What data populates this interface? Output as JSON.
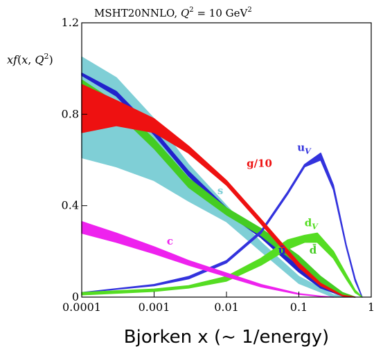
{
  "chart_data": {
    "type": "line",
    "title": "MSHT20NNLO, Q² = 10 GeV²",
    "title_parts": {
      "prefix": "MSHT20NNLO, ",
      "q": "Q",
      "q_exp": "2",
      "equals": " = 10 GeV",
      "gev_exp": "2"
    },
    "ylabel": "xf(x, Q²)",
    "ylabel_parts": {
      "x": "x",
      "f": "f",
      "open": "(",
      "x2": "x",
      "comma": ", ",
      "q": "Q",
      "q_exp": "2",
      "close": ")"
    },
    "xlabel": "Bjorken x (~ 1/energy)",
    "xscale": "log",
    "xlim": [
      0.0001,
      1
    ],
    "ylim": [
      0,
      1.2
    ],
    "x_ticks": [
      {
        "value": 0.0001,
        "label": "0.0001"
      },
      {
        "value": 0.001,
        "label": "0.001"
      },
      {
        "value": 0.01,
        "label": "0.01"
      },
      {
        "value": 0.1,
        "label": "0.1"
      },
      {
        "value": 1,
        "label": "1"
      }
    ],
    "y_ticks": [
      {
        "value": 0,
        "label": "0"
      },
      {
        "value": 0.4,
        "label": "0.4"
      },
      {
        "value": 0.8,
        "label": "0.8"
      },
      {
        "value": 1.2,
        "label": "1.2"
      }
    ],
    "grid": false,
    "series": [
      {
        "name": "s",
        "color": "#7fcfd6",
        "label_x": 0.0075,
        "label_y": 0.45,
        "x": [
          0.0001,
          0.0003,
          0.001,
          0.003,
          0.01,
          0.03,
          0.1,
          0.3,
          0.6
        ],
        "low": [
          0.61,
          0.57,
          0.51,
          0.42,
          0.33,
          0.2,
          0.06,
          0.0,
          0.0
        ],
        "high": [
          1.05,
          0.96,
          0.78,
          0.58,
          0.4,
          0.24,
          0.09,
          0.01,
          0.0
        ]
      },
      {
        "name": "ū",
        "color": "#2222cc",
        "label_x": 0.052,
        "label_y": 0.19,
        "x": [
          0.0001,
          0.0003,
          0.001,
          0.003,
          0.01,
          0.03,
          0.1,
          0.2,
          0.4,
          0.6
        ],
        "low": [
          0.97,
          0.88,
          0.71,
          0.53,
          0.37,
          0.26,
          0.11,
          0.04,
          0.005,
          0.0
        ],
        "high": [
          0.98,
          0.9,
          0.73,
          0.55,
          0.39,
          0.28,
          0.13,
          0.05,
          0.008,
          0.0
        ]
      },
      {
        "name": "d̄",
        "color": "#44cc22",
        "label_x": 0.14,
        "label_y": 0.19,
        "x": [
          0.0001,
          0.0003,
          0.001,
          0.003,
          0.01,
          0.03,
          0.1,
          0.2,
          0.4,
          0.6
        ],
        "low": [
          0.93,
          0.81,
          0.65,
          0.48,
          0.36,
          0.27,
          0.14,
          0.06,
          0.01,
          0.0
        ],
        "high": [
          0.95,
          0.85,
          0.69,
          0.52,
          0.39,
          0.3,
          0.18,
          0.09,
          0.02,
          0.0
        ]
      },
      {
        "name": "u_V",
        "label": "u",
        "sub": "V",
        "color": "#3333dd",
        "label_x": 0.095,
        "label_y": 0.64,
        "x": [
          0.0001,
          0.001,
          0.003,
          0.01,
          0.03,
          0.07,
          0.12,
          0.2,
          0.3,
          0.45,
          0.6,
          0.75
        ],
        "low": [
          0.02,
          0.05,
          0.08,
          0.15,
          0.28,
          0.45,
          0.57,
          0.6,
          0.47,
          0.22,
          0.07,
          0.0
        ],
        "high": [
          0.02,
          0.055,
          0.09,
          0.16,
          0.29,
          0.46,
          0.58,
          0.63,
          0.49,
          0.23,
          0.08,
          0.0
        ]
      },
      {
        "name": "d_V",
        "label": "d",
        "sub": "V",
        "color": "#55dd22",
        "label_x": 0.12,
        "label_y": 0.31,
        "x": [
          0.0001,
          0.001,
          0.003,
          0.01,
          0.03,
          0.07,
          0.12,
          0.18,
          0.3,
          0.45,
          0.6,
          0.75
        ],
        "low": [
          0.01,
          0.025,
          0.04,
          0.07,
          0.14,
          0.21,
          0.24,
          0.24,
          0.17,
          0.08,
          0.02,
          0.0
        ],
        "high": [
          0.02,
          0.035,
          0.05,
          0.09,
          0.17,
          0.25,
          0.27,
          0.28,
          0.2,
          0.1,
          0.03,
          0.0
        ]
      },
      {
        "name": "g/10",
        "color": "#ee1111",
        "label_x": 0.019,
        "label_y": 0.57,
        "x": [
          0.0001,
          0.0003,
          0.001,
          0.003,
          0.01,
          0.03,
          0.1,
          0.2,
          0.4,
          0.6
        ],
        "low": [
          0.72,
          0.75,
          0.72,
          0.63,
          0.49,
          0.32,
          0.13,
          0.05,
          0.005,
          0.0
        ],
        "high": [
          0.93,
          0.86,
          0.78,
          0.66,
          0.51,
          0.34,
          0.15,
          0.06,
          0.008,
          0.0
        ]
      },
      {
        "name": "c",
        "color": "#ee22ee",
        "label_x": 0.0015,
        "label_y": 0.23,
        "x": [
          0.0001,
          0.0003,
          0.001,
          0.003,
          0.01,
          0.03,
          0.1,
          0.2,
          0.3
        ],
        "low": [
          0.28,
          0.24,
          0.19,
          0.14,
          0.09,
          0.045,
          0.012,
          0.003,
          0.0
        ],
        "high": [
          0.33,
          0.28,
          0.22,
          0.16,
          0.105,
          0.055,
          0.015,
          0.004,
          0.0
        ]
      }
    ]
  }
}
